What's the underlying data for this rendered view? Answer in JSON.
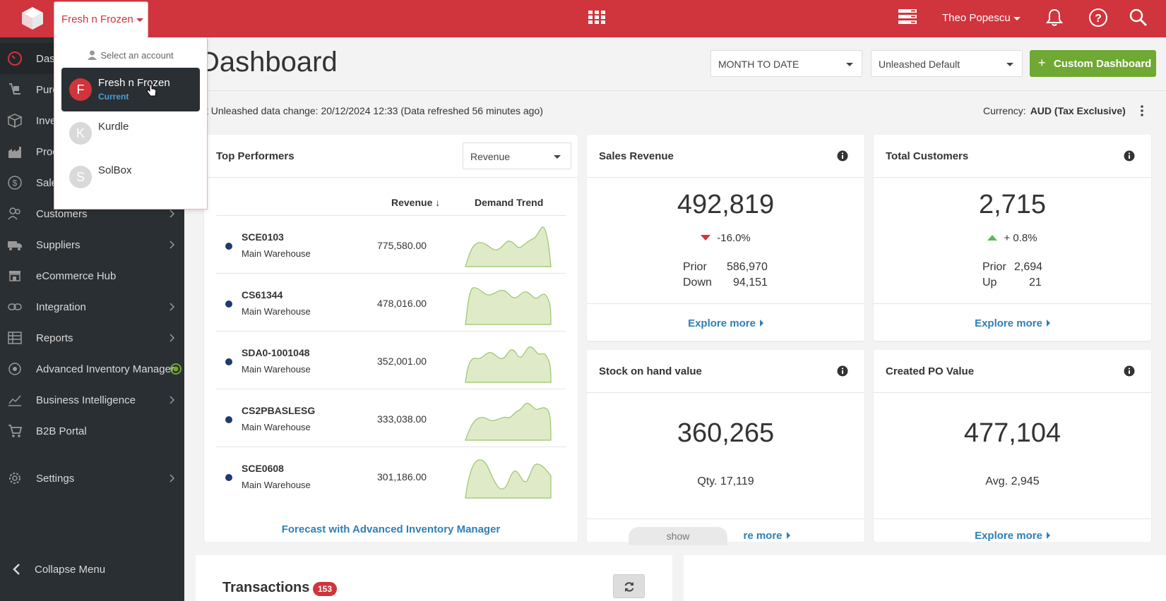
{
  "account": {
    "current": "Fresh n Frozen",
    "dropdown_header": "Select an account",
    "items": [
      {
        "initial": "F",
        "name": "Fresh n Frozen",
        "sub": "Current",
        "color": "#d0343d"
      },
      {
        "initial": "K",
        "name": "Kurdle",
        "sub": "",
        "color": "#d9d9d9"
      },
      {
        "initial": "S",
        "name": "SolBox",
        "sub": "",
        "color": "#d9d9d9"
      }
    ]
  },
  "topbar": {
    "user_name": "Theo Popescu",
    "color": "#d0343d"
  },
  "sidebar": {
    "items": [
      {
        "label": "Dashboard",
        "icon": "dashboard-gauge-icon"
      },
      {
        "label": "Purchases",
        "icon": "purchases-trolley-icon"
      },
      {
        "label": "Inventory",
        "icon": "inventory-box-icon"
      },
      {
        "label": "Production",
        "icon": "production-factory-icon"
      },
      {
        "label": "Sales",
        "icon": "sales-dollar-icon"
      },
      {
        "label": "Customers",
        "icon": "customers-people-icon"
      },
      {
        "label": "Suppliers",
        "icon": "suppliers-truck-icon"
      },
      {
        "label": "eCommerce Hub",
        "icon": "ecommerce-store-icon"
      },
      {
        "label": "Integration",
        "icon": "integration-link-icon"
      },
      {
        "label": "Reports",
        "icon": "reports-table-icon"
      },
      {
        "label": "Advanced Inventory Manager",
        "icon": "aim-target-icon"
      },
      {
        "label": "Business Intelligence",
        "icon": "bi-chart-icon"
      },
      {
        "label": "B2B Portal",
        "icon": "b2b-cart-icon"
      },
      {
        "label": "Settings",
        "icon": "settings-gear-icon"
      }
    ],
    "collapse_label": "Collapse Menu"
  },
  "page": {
    "title": "Dashboard",
    "period_select": "MONTH TO DATE",
    "layout_select": "Unleashed Default",
    "custom_button": "Custom Dashboard",
    "refresh_text": "st Unleashed data change: 20/12/2024 12:33 (Data refreshed 56 minutes ago)",
    "currency_label": "Currency:",
    "currency_value": "AUD (Tax Exclusive)"
  },
  "top_performers": {
    "title": "Top Performers",
    "metric_select": "Revenue",
    "col_revenue": "Revenue",
    "col_trend": "Demand Trend",
    "rows": [
      {
        "code": "SCE0103",
        "warehouse": "Main Warehouse",
        "revenue": "775,580.00"
      },
      {
        "code": "CS61344",
        "warehouse": "Main Warehouse",
        "revenue": "478,016.00"
      },
      {
        "code": "SDA0-1001048",
        "warehouse": "Main Warehouse",
        "revenue": "352,001.00"
      },
      {
        "code": "CS2PBASLESG",
        "warehouse": "Main Warehouse",
        "revenue": "333,038.00"
      },
      {
        "code": "SCE0608",
        "warehouse": "Main Warehouse",
        "revenue": "301,186.00"
      }
    ],
    "forecast_link": "Forecast with Advanced Inventory Manager"
  },
  "sales_revenue": {
    "title": "Sales Revenue",
    "value": "492,819",
    "change": "-16.0%",
    "prior_label": "Prior",
    "prior_value": "586,970",
    "diff_label": "Down",
    "diff_value": "94,151",
    "explore": "Explore more"
  },
  "total_customers": {
    "title": "Total Customers",
    "value": "2,715",
    "change": "+ 0.8%",
    "prior_label": "Prior",
    "prior_value": "2,694",
    "diff_label": "Up",
    "diff_value": "21",
    "explore": "Explore more"
  },
  "stock_on_hand": {
    "title": "Stock on hand value",
    "value": "360,265",
    "sub": "Qty. 17,119",
    "explore": "re more"
  },
  "created_po": {
    "title": "Created PO Value",
    "value": "477,104",
    "sub": "Avg. 2,945",
    "explore": "Explore more"
  },
  "show_tab": "show",
  "transactions": {
    "title": "Transactions",
    "count": "153"
  }
}
